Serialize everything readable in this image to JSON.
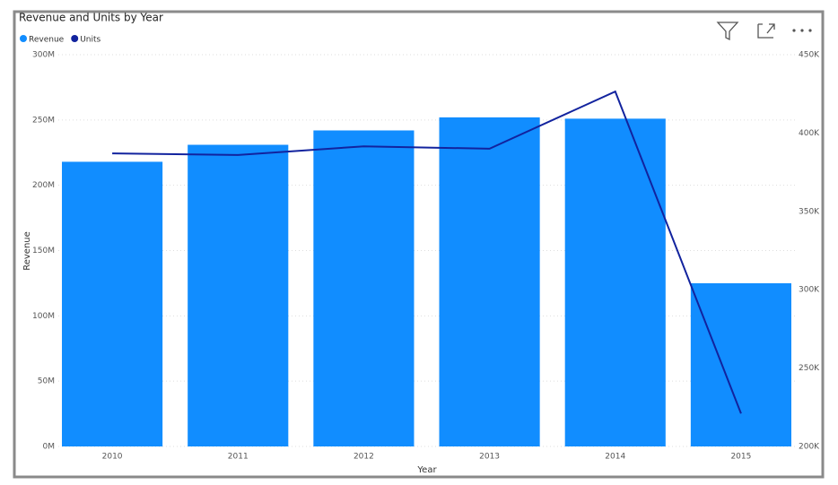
{
  "chart_data": {
    "type": "combo",
    "title": "Revenue and Units by Year",
    "categories": [
      "2010",
      "2011",
      "2012",
      "2013",
      "2014",
      "2015"
    ],
    "x_label": "Year",
    "y_label": "Revenue",
    "series": [
      {
        "name": "Revenue",
        "type": "bar",
        "color": "#118DFF",
        "values": [
          218000000,
          231000000,
          242000000,
          252000000,
          251000000,
          125000000
        ]
      },
      {
        "name": "Units",
        "type": "line",
        "axis": "y2",
        "color": "#12239E",
        "values": [
          387000,
          386000,
          391500,
          390000,
          426500,
          221000
        ]
      }
    ],
    "ylim": [
      0,
      300000000
    ],
    "yticks": [
      {
        "value": 0,
        "label": "0M"
      },
      {
        "value": 50000000,
        "label": "50M"
      },
      {
        "value": 100000000,
        "label": "100M"
      },
      {
        "value": 150000000,
        "label": "150M"
      },
      {
        "value": 200000000,
        "label": "200M"
      },
      {
        "value": 250000000,
        "label": "250M"
      },
      {
        "value": 300000000,
        "label": "300M"
      }
    ],
    "y2lim": [
      200000,
      450000
    ],
    "y2ticks": [
      {
        "value": 200000,
        "label": "200K"
      },
      {
        "value": 250000,
        "label": "250K"
      },
      {
        "value": 300000,
        "label": "300K"
      },
      {
        "value": 350000,
        "label": "350K"
      },
      {
        "value": 400000,
        "label": "400K"
      },
      {
        "value": 450000,
        "label": "450K"
      }
    ],
    "grid": true
  }
}
